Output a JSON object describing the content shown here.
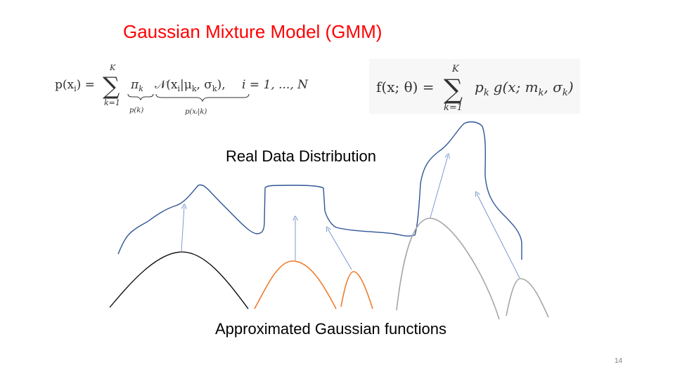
{
  "title": "Gaussian Mixture Model (GMM)",
  "formula_left": {
    "lhs": "p(x",
    "lhs_sub": "i",
    "lhs_close": ") =",
    "sum_upper": "K",
    "sum_lower": "k=1",
    "pi": "π",
    "pi_sub": "k",
    "brace1_label": "p(k)",
    "normal": "𝒩(x",
    "normal_sub": "i",
    "normal_args": "|μ",
    "normal_args_sub": "k",
    "normal_args2": ", σ",
    "normal_args2_sub": "k",
    "normal_close": "),",
    "brace2_label": "p(xᵢ|k)",
    "tail": "i = 1, ..., N"
  },
  "formula_right": {
    "lhs": "f(x; θ) =",
    "sum_upper": "K",
    "sum_lower": "k=1",
    "term": "p",
    "term_sub": "k",
    "g": "g(x; m",
    "g_sub": "k",
    "g2": ", σ",
    "g2_sub": "k",
    "g_close": ")"
  },
  "real_data_label": "Real Data Distribution",
  "approx_label": "Approximated Gaussian functions",
  "page_number": "14",
  "colors": {
    "title": "#ff0000",
    "real_curve": "#2f5597",
    "arrow": "#6f8fc9",
    "gaussian_black": "#000000",
    "gaussian_orange": "#ed7d31",
    "gaussian_gray": "#a6a6a6"
  }
}
